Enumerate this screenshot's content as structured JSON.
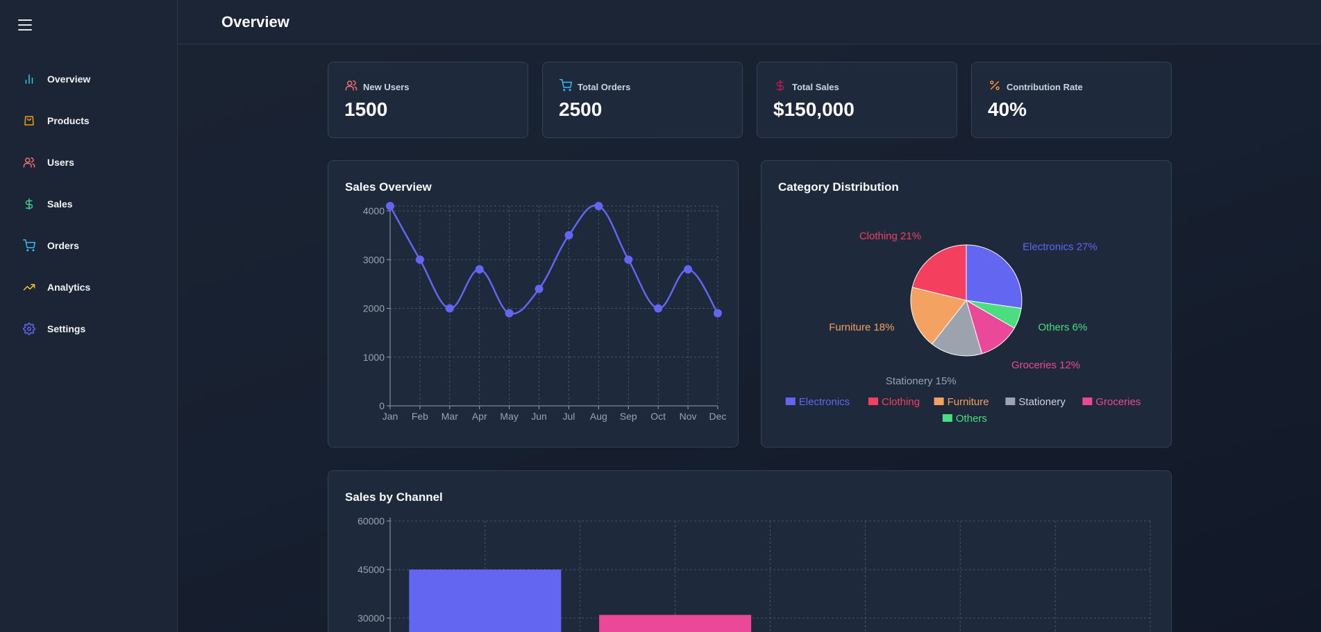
{
  "page": {
    "title": "Overview"
  },
  "sidebar": {
    "items": [
      {
        "label": "Overview",
        "icon": "bar-chart-icon",
        "color": "#22d3ee"
      },
      {
        "label": "Products",
        "icon": "shopping-bag-icon",
        "color": "#f59e0b"
      },
      {
        "label": "Users",
        "icon": "users-icon",
        "color": "#f87171"
      },
      {
        "label": "Sales",
        "icon": "dollar-icon",
        "color": "#34d399"
      },
      {
        "label": "Orders",
        "icon": "cart-icon",
        "color": "#38bdf8"
      },
      {
        "label": "Analytics",
        "icon": "trending-up-icon",
        "color": "#facc15"
      },
      {
        "label": "Settings",
        "icon": "gear-icon",
        "color": "#6366f1"
      }
    ]
  },
  "stats": [
    {
      "label": "New Users",
      "value": "1500",
      "icon": "users-icon",
      "color": "#f87171"
    },
    {
      "label": "Total Orders",
      "value": "2500",
      "icon": "cart-icon",
      "color": "#38bdf8"
    },
    {
      "label": "Total Sales",
      "value": "$150,000",
      "icon": "dollar-icon",
      "color": "#be185d"
    },
    {
      "label": "Contribution Rate",
      "value": "40%",
      "icon": "percent-icon",
      "color": "#fb923c"
    }
  ],
  "sales_overview": {
    "title": "Sales Overview"
  },
  "category_distribution": {
    "title": "Category Distribution"
  },
  "sales_by_channel": {
    "title": "Sales by Channel"
  },
  "chart_data": [
    {
      "type": "line",
      "title": "Sales Overview",
      "categories": [
        "Jan",
        "Feb",
        "Mar",
        "Apr",
        "May",
        "Jun",
        "Jul",
        "Aug",
        "Sep",
        "Oct",
        "Nov",
        "Dec"
      ],
      "values": [
        4100,
        3000,
        2000,
        2800,
        1900,
        2400,
        3500,
        4100,
        3000,
        2000,
        2800,
        1900
      ],
      "yticks": [
        0,
        1000,
        2000,
        3000,
        4000
      ],
      "ylim": [
        0,
        4000
      ],
      "color": "#6366f1",
      "grid": true
    },
    {
      "type": "pie",
      "title": "Category Distribution",
      "slices": [
        {
          "name": "Electronics",
          "value": 27,
          "label": "Electronics 27%",
          "color": "#6366f1"
        },
        {
          "name": "Others",
          "value": 6,
          "label": "Others 6%",
          "color": "#4ade80"
        },
        {
          "name": "Groceries",
          "value": 12,
          "label": "Groceries 12%",
          "color": "#ec4899"
        },
        {
          "name": "Stationery",
          "value": 15,
          "label": "Stationery 15%",
          "color": "#9ca3af"
        },
        {
          "name": "Furniture",
          "value": 18,
          "label": "Furniture 18%",
          "color": "#f4a261"
        },
        {
          "name": "Clothing",
          "value": 21,
          "label": "Clothing 21%",
          "color": "#f43f5e"
        }
      ],
      "legend": [
        "Electronics",
        "Clothing",
        "Furniture",
        "Stationery",
        "Groceries",
        "Others"
      ],
      "legend_position": "bottom"
    },
    {
      "type": "bar",
      "title": "Sales by Channel",
      "categories": [
        "",
        "",
        "",
        ""
      ],
      "values": [
        45000,
        31000,
        null,
        null
      ],
      "colors": [
        "#6366f1",
        "#ec4899"
      ],
      "yticks": [
        30000,
        45000,
        60000
      ],
      "ylim": [
        0,
        60000
      ],
      "grid": true
    }
  ]
}
